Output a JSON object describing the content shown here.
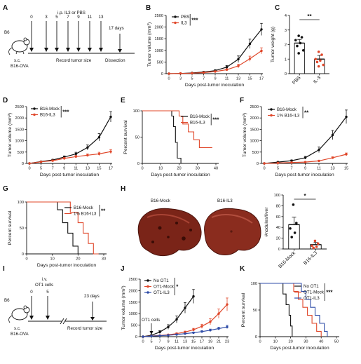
{
  "panel_labels": [
    "A",
    "B",
    "C",
    "D",
    "E",
    "F",
    "G",
    "H",
    "I",
    "J",
    "K"
  ],
  "timeline_a": {
    "mouse_label": "B6",
    "route_label": "s.c.",
    "tumor_label": "B16-OVA",
    "treatment_label": "i.p. IL3 or PBS",
    "days": [
      "0",
      "3",
      "5",
      "7",
      "9",
      "11",
      "13"
    ],
    "end_day": "17 days",
    "record_label": "Record tumor size",
    "end_label": "Dissection"
  },
  "timeline_i": {
    "mouse_label": "B6",
    "route_label": "s.c.",
    "tumor_label": "B16-OVA",
    "treatment_label": "i.v.",
    "treatment_label2": "OT1 cells",
    "days": [
      "0",
      "5"
    ],
    "end_day": "23 days",
    "record_label": "Record tumor size"
  },
  "images_h": {
    "left_label": "B16-Mock",
    "right_label": "B16-IL3"
  },
  "colors": {
    "black": "#111111",
    "red": "#e0472a",
    "blue": "#2f4da8"
  },
  "chart_data": [
    {
      "panel": "B",
      "type": "line",
      "ylabel": "Tumor volume (mm³)",
      "xlabel": "Days post-tumor inoculation",
      "x": [
        0,
        3,
        5,
        7,
        9,
        11,
        13,
        15,
        17
      ],
      "xticks": [
        "0",
        "3",
        "5",
        "7",
        "9",
        "11",
        "13",
        "15",
        "17"
      ],
      "yticks": [
        "0",
        "500",
        "1000",
        "1500",
        "2000",
        "2500"
      ],
      "ylim": [
        0,
        2500
      ],
      "significance": "***",
      "series": [
        {
          "name": "PBS",
          "color": "#111111",
          "values": [
            0,
            10,
            30,
            70,
            130,
            280,
            620,
            1280,
            1900
          ],
          "err": [
            0,
            5,
            10,
            20,
            40,
            70,
            140,
            200,
            260
          ]
        },
        {
          "name": "IL3",
          "color": "#e0472a",
          "values": [
            0,
            8,
            20,
            45,
            90,
            170,
            330,
            640,
            980
          ],
          "err": [
            0,
            5,
            8,
            15,
            25,
            40,
            80,
            110,
            130
          ]
        }
      ]
    },
    {
      "panel": "C",
      "type": "bar",
      "ylabel": "Tumor weight (g)",
      "categories": [
        "PBS",
        "IL-3"
      ],
      "values": [
        2.1,
        1.0
      ],
      "yticks": [
        "0",
        "1",
        "2",
        "3",
        "4"
      ],
      "ylim": [
        0,
        4
      ],
      "significance": "**",
      "points": [
        [
          2.6,
          2.5,
          2.3,
          2.1,
          1.9,
          1.6,
          1.4
        ],
        [
          1.5,
          1.3,
          1.0,
          0.9,
          0.8,
          0.6,
          0.5
        ]
      ],
      "colors": [
        "#111111",
        "#e0472a"
      ]
    },
    {
      "panel": "D",
      "type": "line",
      "ylabel": "Tumor volume (mm³)",
      "xlabel": "Days post-tumor inoculation",
      "x": [
        0,
        5,
        7,
        9,
        11,
        13,
        15,
        17
      ],
      "xticks": [
        "0",
        "5",
        "7",
        "9",
        "11",
        "13",
        "15",
        "17"
      ],
      "yticks": [
        "0",
        "500",
        "1000",
        "1500",
        "2000",
        "2500"
      ],
      "ylim": [
        0,
        2500
      ],
      "significance": "***",
      "series": [
        {
          "name": "B16-Mock",
          "color": "#111111",
          "values": [
            0,
            80,
            150,
            280,
            420,
            700,
            1150,
            2050
          ],
          "err": [
            0,
            20,
            30,
            50,
            70,
            110,
            160,
            230
          ]
        },
        {
          "name": "B16-IL3",
          "color": "#e0472a",
          "values": [
            0,
            70,
            120,
            220,
            300,
            360,
            420,
            520
          ],
          "err": [
            0,
            15,
            25,
            40,
            50,
            60,
            70,
            90
          ]
        }
      ]
    },
    {
      "panel": "E",
      "type": "line",
      "ylabel": "Percent survival",
      "xlabel": "Days post-tumor inoculation",
      "xticks": [
        "0",
        "10",
        "20",
        "30",
        "40"
      ],
      "xlim": [
        0,
        40
      ],
      "yticks": [
        "0",
        "50",
        "100"
      ],
      "ylim": [
        0,
        100
      ],
      "significance": "***",
      "series": [
        {
          "name": "B16-Mock",
          "color": "#111111",
          "x": [
            0,
            16,
            16,
            17,
            17,
            18,
            18,
            19,
            19,
            21,
            21
          ],
          "values": [
            100,
            100,
            90,
            90,
            70,
            70,
            40,
            40,
            10,
            10,
            0
          ]
        },
        {
          "name": "B16-IL3",
          "color": "#e0472a",
          "x": [
            0,
            20,
            20,
            22,
            22,
            25,
            25,
            28,
            28,
            31,
            31,
            38
          ],
          "values": [
            100,
            100,
            90,
            90,
            75,
            75,
            60,
            60,
            45,
            45,
            30,
            30
          ]
        }
      ]
    },
    {
      "panel": "F",
      "type": "line",
      "ylabel": "Tumor volume (mm³)",
      "xlabel": "Days post-tumor inoculation",
      "x": [
        0,
        5,
        7,
        9,
        11,
        13,
        15
      ],
      "xticks": [
        "0",
        "5",
        "7",
        "9",
        "11",
        "13",
        "15"
      ],
      "yticks": [
        "0",
        "500",
        "1000",
        "1500",
        "2000",
        "2500"
      ],
      "ylim": [
        0,
        2500
      ],
      "significance": "**",
      "series": [
        {
          "name": "B16-Mock",
          "color": "#111111",
          "values": [
            0,
            60,
            120,
            250,
            600,
            1250,
            2050
          ],
          "err": [
            0,
            15,
            30,
            60,
            120,
            200,
            300
          ]
        },
        {
          "name": "1% B16-IL3",
          "color": "#e0472a",
          "values": [
            0,
            20,
            40,
            60,
            110,
            250,
            400
          ],
          "err": [
            0,
            8,
            12,
            18,
            25,
            40,
            60
          ]
        }
      ]
    },
    {
      "panel": "G",
      "type": "line",
      "ylabel": "Percent survival",
      "xlabel": "Days post-tumor inoculation",
      "xticks": [
        "0",
        "10",
        "20",
        "30"
      ],
      "xlim": [
        0,
        30
      ],
      "yticks": [
        "0",
        "50",
        "100"
      ],
      "ylim": [
        0,
        100
      ],
      "significance": "**",
      "series": [
        {
          "name": "B16-Mock",
          "color": "#111111",
          "x": [
            0,
            12,
            12,
            14,
            14,
            16,
            16,
            18,
            18,
            20,
            20
          ],
          "values": [
            100,
            100,
            85,
            85,
            60,
            60,
            40,
            40,
            15,
            15,
            0
          ]
        },
        {
          "name": "1% B16-IL3",
          "color": "#e0472a",
          "x": [
            0,
            17,
            17,
            20,
            20,
            22,
            22,
            24,
            24,
            26,
            26,
            28
          ],
          "values": [
            100,
            100,
            80,
            80,
            60,
            60,
            40,
            40,
            20,
            20,
            0,
            0
          ]
        }
      ]
    },
    {
      "panel": "H",
      "type": "bar",
      "ylabel": "#nodules/liver",
      "categories": [
        "B16-Mock",
        "B16-IL3"
      ],
      "values": [
        45,
        8
      ],
      "err": [
        14,
        4
      ],
      "yticks": [
        "0",
        "20",
        "40",
        "60",
        "80",
        "100"
      ],
      "ylim": [
        0,
        100
      ],
      "significance": "*",
      "points": [
        [
          82,
          48,
          38,
          30,
          22
        ],
        [
          15,
          10,
          6,
          4,
          2
        ]
      ],
      "colors": [
        "#111111",
        "#e0472a"
      ]
    },
    {
      "panel": "J",
      "type": "line",
      "ylabel": "Tumor volume (mm³)",
      "xlabel": "Days post-tumor inoculation",
      "x": [
        0,
        5,
        7,
        9,
        11,
        13,
        15,
        17,
        19,
        21,
        23
      ],
      "xticks": [
        "0",
        "5",
        "7",
        "9",
        "11",
        "13",
        "15",
        "17",
        "19",
        "21",
        "23"
      ],
      "yticks": [
        "0",
        "500",
        "1000",
        "1500",
        "2000",
        "2500"
      ],
      "ylim": [
        0,
        2500
      ],
      "significance": "*",
      "annotation": "OT1 cells",
      "series": [
        {
          "name": "No OT1",
          "color": "#111111",
          "values": [
            0,
            60,
            200,
            420,
            750,
            1250,
            1750,
            null,
            null,
            null,
            null
          ],
          "err": [
            0,
            20,
            60,
            100,
            150,
            230,
            300,
            null,
            null,
            null,
            null
          ]
        },
        {
          "name": "OT1-Mock",
          "color": "#e0472a",
          "values": [
            0,
            30,
            50,
            80,
            130,
            200,
            300,
            450,
            650,
            1000,
            1400
          ],
          "err": [
            0,
            10,
            15,
            20,
            30,
            40,
            60,
            90,
            130,
            200,
            280
          ]
        },
        {
          "name": "OT1-IL3",
          "color": "#2f4da8",
          "values": [
            0,
            25,
            40,
            60,
            90,
            130,
            170,
            220,
            280,
            350,
            420
          ],
          "err": [
            0,
            8,
            12,
            15,
            20,
            25,
            30,
            40,
            50,
            60,
            70
          ]
        }
      ]
    },
    {
      "panel": "K",
      "type": "line",
      "ylabel": "Percent survival",
      "xlabel": "Days post-tumor inoculation",
      "xticks": [
        "0",
        "10",
        "20",
        "30",
        "40",
        "50"
      ],
      "xlim": [
        0,
        50
      ],
      "yticks": [
        "0",
        "50",
        "100"
      ],
      "ylim": [
        0,
        100
      ],
      "significance": "***",
      "series": [
        {
          "name": "No OT1",
          "color": "#111111",
          "x": [
            0,
            15,
            15,
            17,
            17,
            19,
            19,
            20,
            20,
            21,
            21
          ],
          "values": [
            100,
            100,
            80,
            80,
            60,
            60,
            40,
            40,
            20,
            20,
            0
          ]
        },
        {
          "name": "OT1-Mock",
          "color": "#e0472a",
          "x": [
            0,
            22,
            22,
            25,
            25,
            28,
            28,
            31,
            31,
            34,
            34,
            37,
            37,
            40,
            40
          ],
          "values": [
            100,
            100,
            85,
            85,
            70,
            70,
            55,
            55,
            40,
            40,
            25,
            25,
            10,
            10,
            0
          ]
        },
        {
          "name": "OT1-IL3",
          "color": "#2f4da8",
          "x": [
            0,
            27,
            27,
            30,
            30,
            33,
            33,
            36,
            36,
            39,
            39,
            42,
            42,
            44,
            44
          ],
          "values": [
            100,
            100,
            85,
            85,
            70,
            70,
            55,
            55,
            40,
            40,
            25,
            25,
            10,
            10,
            0
          ]
        }
      ]
    }
  ]
}
